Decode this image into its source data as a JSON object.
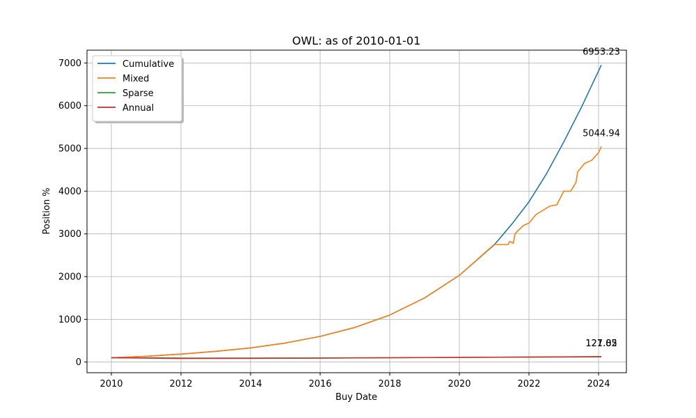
{
  "chart_data": {
    "type": "line",
    "title": "OWL: as of 2010-01-01",
    "xlabel": "Buy Date",
    "ylabel": "Position %",
    "xlim": [
      2009.3,
      2024.8
    ],
    "ylim": [
      -250,
      7300
    ],
    "x_ticks": [
      2010,
      2012,
      2014,
      2016,
      2018,
      2020,
      2022,
      2024
    ],
    "y_ticks": [
      0,
      1000,
      2000,
      3000,
      4000,
      5000,
      6000,
      7000
    ],
    "grid": true,
    "legend_position": "top-left",
    "series": [
      {
        "name": "Cumulative",
        "color": "#1f77b4",
        "x": [
          2010.0,
          2011.0,
          2012.0,
          2013.0,
          2014.0,
          2015.0,
          2016.0,
          2017.0,
          2018.0,
          2019.0,
          2020.0,
          2021.0,
          2021.5,
          2022.0,
          2022.5,
          2023.0,
          2023.5,
          2024.08
        ],
        "y": [
          100,
          135,
          185,
          250,
          330,
          445,
          600,
          810,
          1100,
          1500,
          2030,
          2740,
          3220,
          3750,
          4400,
          5150,
          5950,
          6953.23
        ],
        "end_label": "6953.23"
      },
      {
        "name": "Mixed",
        "color": "#ff7f0e",
        "x": [
          2010.0,
          2011.0,
          2012.0,
          2013.0,
          2014.0,
          2015.0,
          2016.0,
          2017.0,
          2018.0,
          2019.0,
          2020.0,
          2021.0,
          2021.4,
          2021.45,
          2021.55,
          2021.6,
          2021.65,
          2021.85,
          2022.0,
          2022.2,
          2022.4,
          2022.6,
          2022.8,
          2023.0,
          2023.2,
          2023.35,
          2023.4,
          2023.6,
          2023.8,
          2024.0,
          2024.08
        ],
        "y": [
          100,
          135,
          185,
          250,
          330,
          445,
          600,
          810,
          1100,
          1500,
          2030,
          2750,
          2750,
          2820,
          2780,
          3000,
          3050,
          3200,
          3250,
          3450,
          3550,
          3650,
          3680,
          4000,
          4000,
          4200,
          4450,
          4650,
          4720,
          4900,
          5044.94
        ],
        "end_label": "5044.94"
      },
      {
        "name": "Sparse",
        "color": "#2ca02c",
        "x": [
          2010.0,
          2012.0,
          2014.0,
          2016.0,
          2018.0,
          2020.0,
          2022.0,
          2024.08
        ],
        "y": [
          100,
          92,
          90,
          94,
          100,
          108,
          115,
          121.85
        ],
        "end_label": "121.85"
      },
      {
        "name": "Annual",
        "color": "#d62728",
        "x": [
          2010.0,
          2012.0,
          2014.0,
          2016.0,
          2018.0,
          2020.0,
          2022.0,
          2024.08
        ],
        "y": [
          100,
          85,
          88,
          93,
          100,
          108,
          117,
          127.02
        ],
        "end_label": "127.02"
      }
    ]
  }
}
